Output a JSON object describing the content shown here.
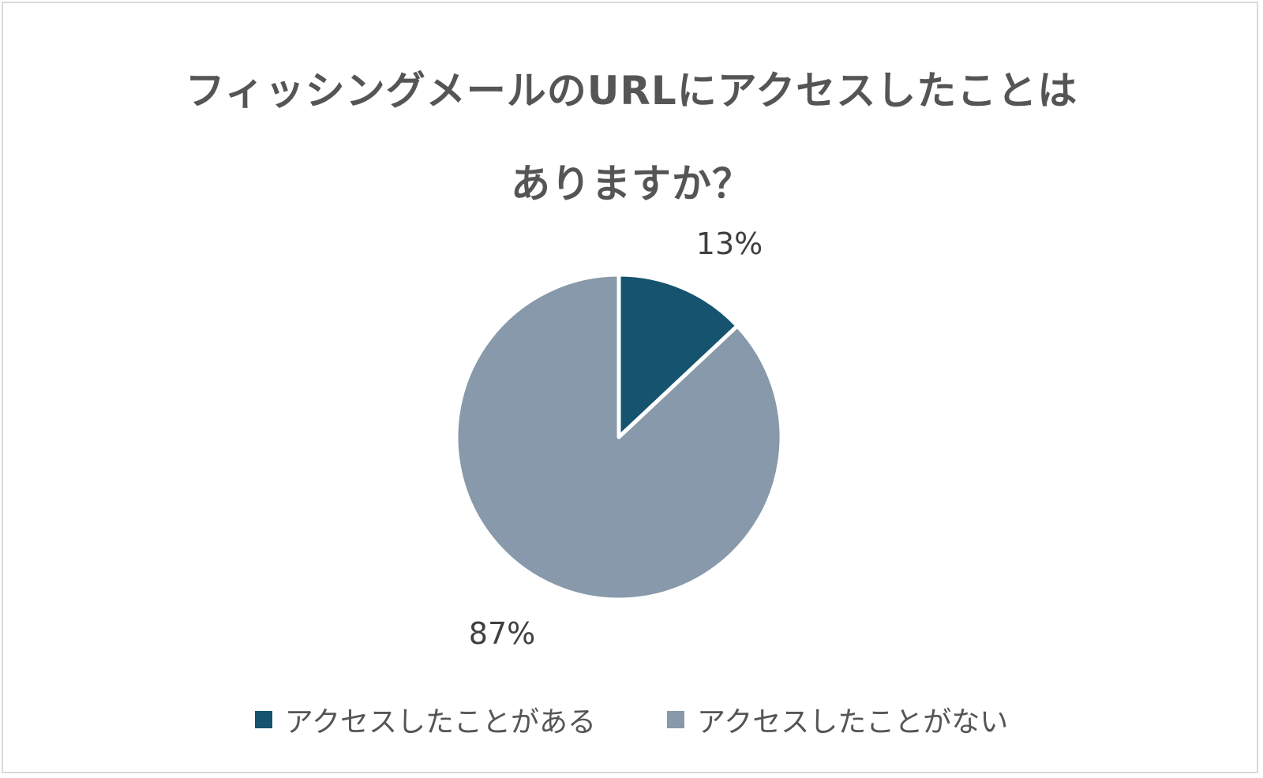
{
  "chart_data": {
    "type": "pie",
    "title": "フィッシングメールのURLにアクセスしたことはありますか？",
    "title_lines": [
      "フィッシングメールのURLにアクセスしたことは",
      "ありますか？"
    ],
    "start_angle_deg": 0,
    "direction": "clockwise",
    "slices": [
      {
        "name": "アクセスしたことがある",
        "value": 13,
        "label": "13%",
        "color": "#15536f"
      },
      {
        "name": "アクセスしたことがない",
        "value": 87,
        "label": "87%",
        "color": "#8799aa"
      }
    ],
    "legend_position": "bottom"
  }
}
